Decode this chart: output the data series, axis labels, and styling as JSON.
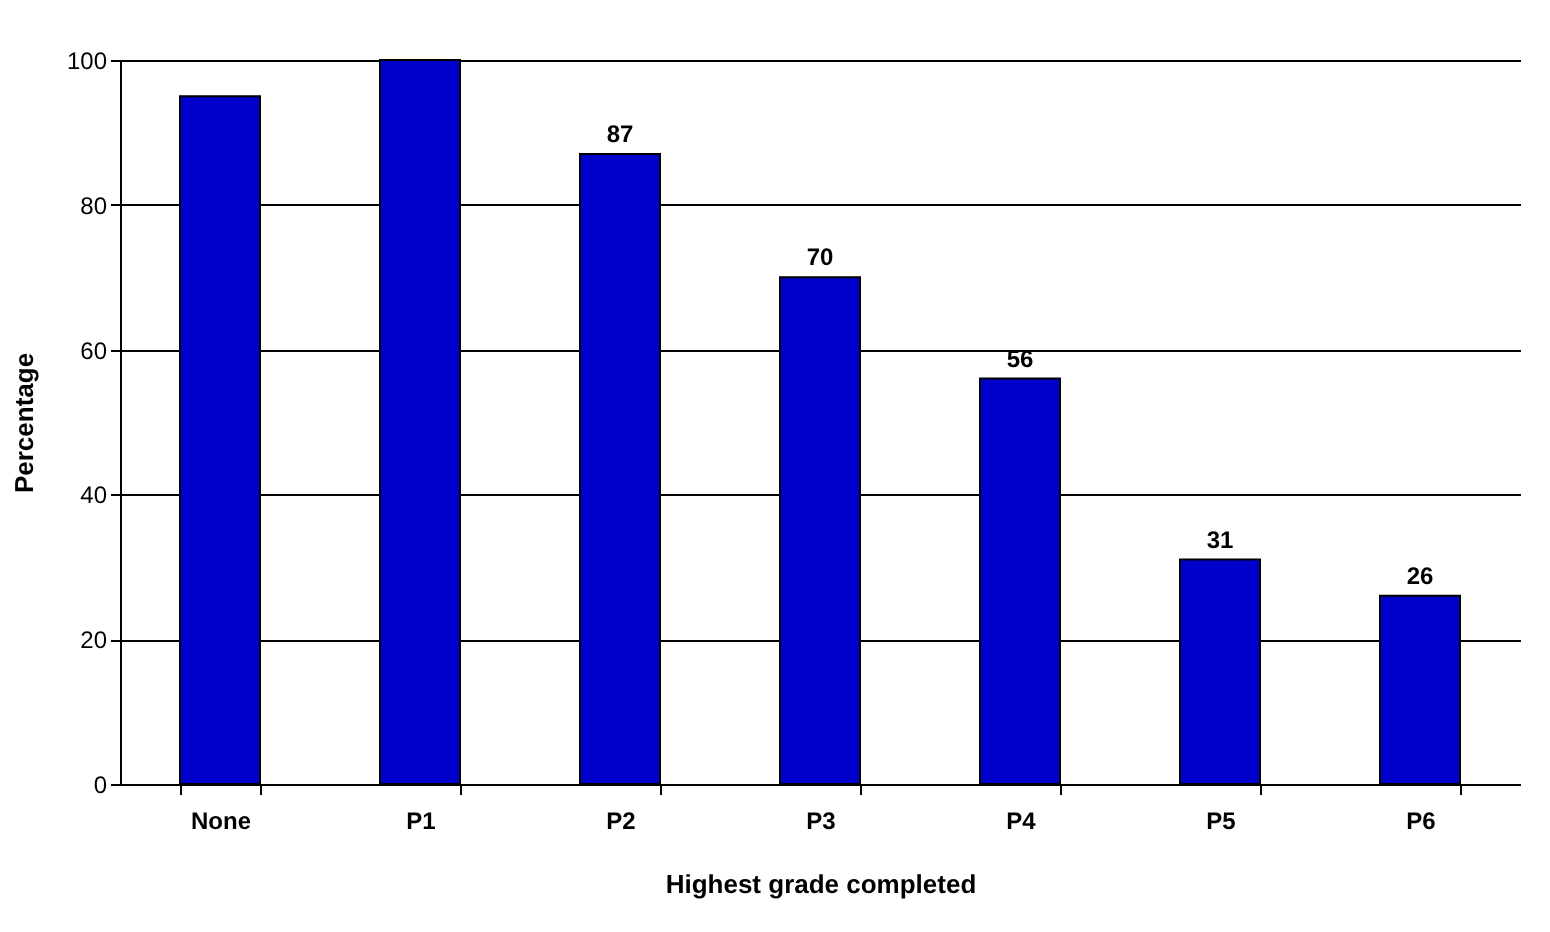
{
  "chart_data": {
    "type": "bar",
    "xlabel": "Highest grade completed",
    "ylabel": "Percentage",
    "categories": [
      "None",
      "P1",
      "P2",
      "P3",
      "P4",
      "P5",
      "P6"
    ],
    "values": [
      95,
      100,
      87,
      70,
      56,
      31,
      26
    ],
    "value_labels": [
      null,
      null,
      "87",
      "70",
      "56",
      "31",
      "26"
    ],
    "color": "#0000cc",
    "ylim": [
      0,
      100
    ],
    "yticks": [
      0,
      20,
      40,
      60,
      80,
      100
    ],
    "grid": "y"
  }
}
